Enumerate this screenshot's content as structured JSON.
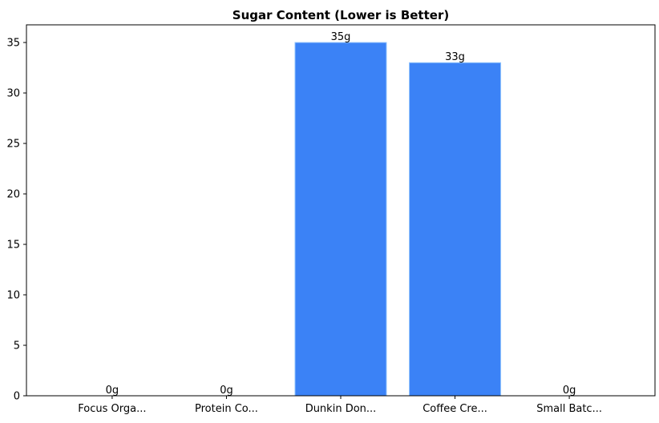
{
  "chart_data": {
    "type": "bar",
    "title": "Sugar Content (Lower is Better)",
    "xlabel": "",
    "ylabel": "",
    "categories": [
      "Focus Orga...",
      "Protein Co...",
      "Dunkin Don...",
      "Coffee Cre...",
      "Small Batc..."
    ],
    "values": [
      0,
      0,
      35,
      33,
      0
    ],
    "data_labels": [
      "0g",
      "0g",
      "35g",
      "33g",
      "0g"
    ],
    "ylim": [
      0,
      36.75
    ],
    "yticks": [
      0,
      5,
      10,
      15,
      20,
      25,
      30,
      35
    ],
    "grid": false,
    "legend": "none",
    "bar_color": "#3b82f6",
    "bar_edge_color": "#93c5fd"
  }
}
